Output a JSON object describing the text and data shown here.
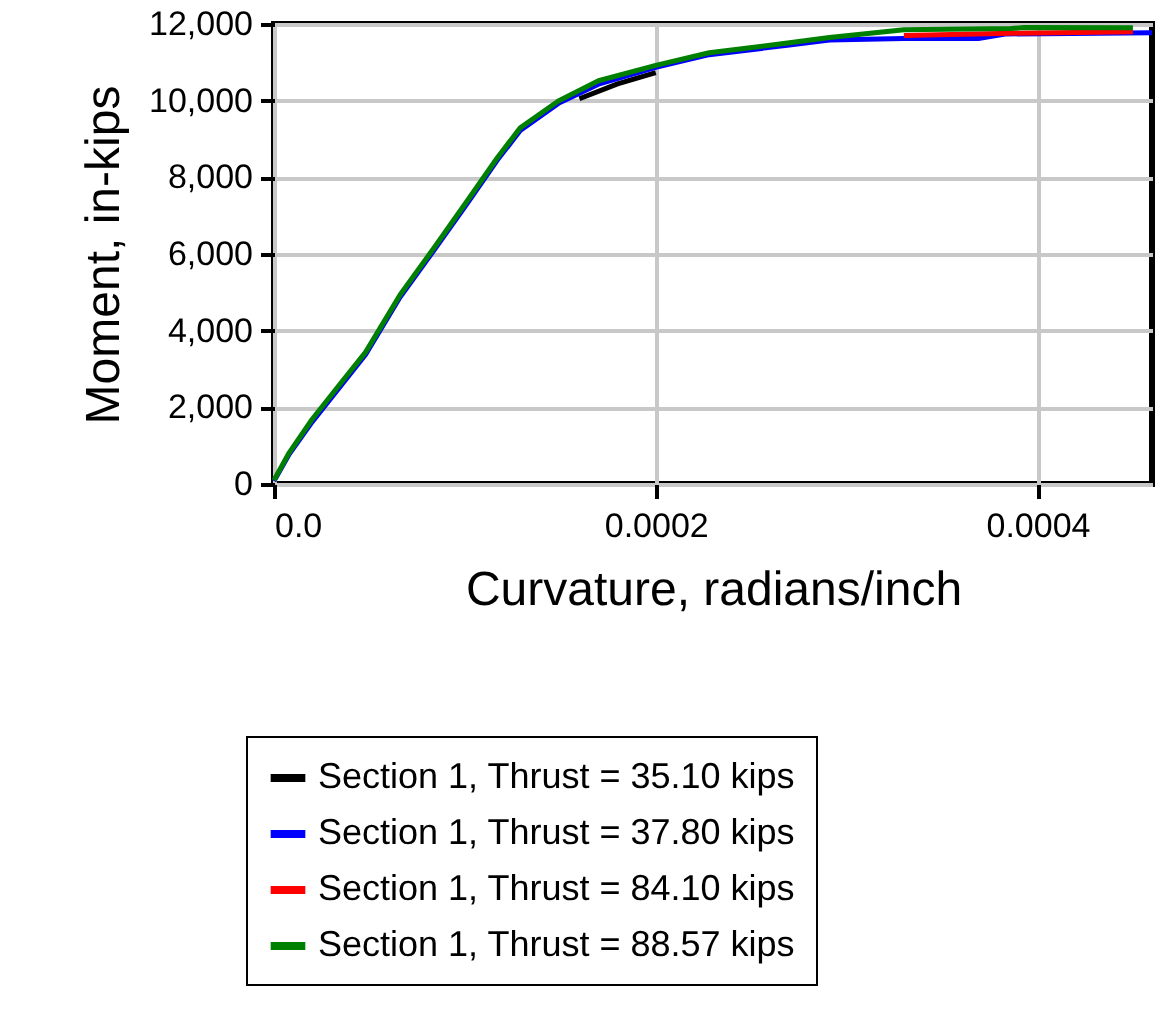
{
  "chart_data": {
    "type": "line",
    "xlabel": "Curvature, radians/inch",
    "ylabel": "Moment, in-kips",
    "xlim": [
      0,
      0.00046
    ],
    "ylim": [
      0,
      12000
    ],
    "xticks": [
      {
        "value": 0,
        "label": "0.0"
      },
      0.0002,
      0.0004
    ],
    "yticks": [
      0,
      {
        "value": 2000,
        "label": "2,000"
      },
      {
        "value": 4000,
        "label": "4,000"
      },
      {
        "value": 6000,
        "label": "6,000"
      },
      {
        "value": 8000,
        "label": "8,000"
      },
      {
        "value": 10000,
        "label": "10,000"
      },
      {
        "value": 12000,
        "label": "12,000"
      }
    ],
    "grid": true,
    "legend": "bottom",
    "series": [
      {
        "name": "Section 1, Thrust = 35.10 kips",
        "color": "#000000",
        "x": [
          0.00016,
          0.00018,
          0.0002
        ],
        "values": [
          10050,
          10440,
          10730
        ]
      },
      {
        "name": "Section 1, Thrust = 37.80 kips",
        "color": "#0000ff",
        "x": [
          0,
          8e-06,
          2e-05,
          3.4e-05,
          4.8e-05,
          6.6e-05,
          8.5e-05,
          0.000101,
          0.000117,
          0.000129,
          0.000149,
          0.00017,
          0.0002,
          0.000228,
          0.00027,
          0.000291,
          0.00033,
          0.000369,
          0.000383,
          0.00046
        ],
        "values": [
          80,
          780,
          1620,
          2500,
          3380,
          4870,
          6180,
          7300,
          8450,
          9220,
          9930,
          10430,
          10870,
          11200,
          11450,
          11580,
          11620,
          11620,
          11740,
          11770
        ]
      },
      {
        "name": "Section 1, Thrust = 84.10 kips",
        "color": "#ff0000",
        "x": [
          0.00033,
          0.000386,
          0.00045
        ],
        "values": [
          11700,
          11760,
          11800
        ]
      },
      {
        "name": "Section 1, Thrust = 88.57 kips",
        "color": "#008000",
        "x": [
          0,
          8e-06,
          2e-05,
          3.4e-05,
          4.8e-05,
          6.6e-05,
          8.5e-05,
          0.000101,
          0.000117,
          0.000129,
          0.000149,
          0.00017,
          0.0002,
          0.000228,
          0.00027,
          0.000291,
          0.00033,
          0.000386,
          0.000393,
          0.00045
        ],
        "values": [
          100,
          820,
          1690,
          2570,
          3440,
          4930,
          6240,
          7370,
          8510,
          9290,
          9990,
          10520,
          10920,
          11250,
          11510,
          11650,
          11850,
          11880,
          11910,
          11900
        ]
      }
    ]
  }
}
